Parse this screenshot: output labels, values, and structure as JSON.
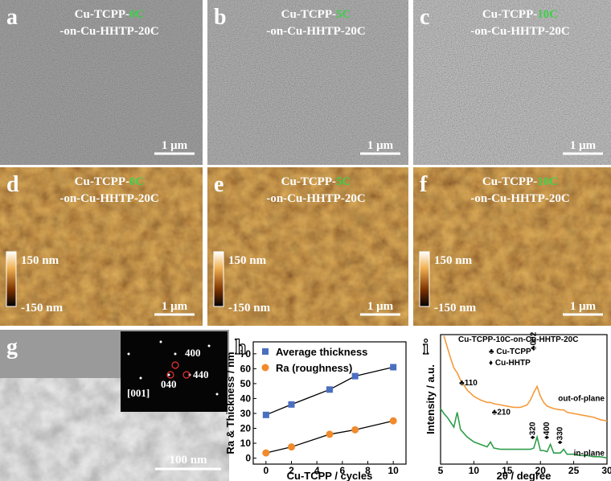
{
  "panels": [
    {
      "letter": "a",
      "title_prefix": "Cu-TCPP-",
      "cycles": "0C",
      "title_suffix": "-on-Cu-HHTP-20C",
      "scale_bar": "1 μm"
    },
    {
      "letter": "b",
      "title_prefix": "Cu-TCPP-",
      "cycles": "5C",
      "title_suffix": "-on-Cu-HHTP-20C",
      "scale_bar": "1 μm"
    },
    {
      "letter": "c",
      "title_prefix": "Cu-TCPP-",
      "cycles": "10C",
      "title_suffix": "-on-Cu-HHTP-20C",
      "scale_bar": "1 μm"
    },
    {
      "letter": "d",
      "title_prefix": "Cu-TCPP-",
      "cycles": "0C",
      "title_suffix": "-on-Cu-HHTP-20C",
      "scale_bar": "1 μm",
      "color_max": "150 nm",
      "color_min": "-150 nm"
    },
    {
      "letter": "e",
      "title_prefix": "Cu-TCPP-",
      "cycles": "5C",
      "title_suffix": "-on-Cu-HHTP-20C",
      "scale_bar": "1 μm",
      "color_max": "150 nm",
      "color_min": "-150 nm"
    },
    {
      "letter": "f",
      "title_prefix": "Cu-TCPP-",
      "cycles": "10C",
      "title_suffix": "-on-Cu-HHTP-20C",
      "scale_bar": "1 μm",
      "color_max": "150 nm",
      "color_min": "-150 nm"
    }
  ],
  "tem": {
    "letter": "g",
    "scale_bar": "100 nm",
    "inset_spots": [
      "400",
      "440",
      "040"
    ],
    "inset_zone": "[001]"
  },
  "chart_data": [
    {
      "type": "scatter",
      "panel_label": "h",
      "x_label": "Cu-TCPP / cycles",
      "y_label": "Ra & Thickness / nm",
      "x": [
        0,
        2,
        5,
        7,
        10
      ],
      "xlim": [
        -1,
        11
      ],
      "xticks": [
        0,
        2,
        4,
        6,
        8,
        10
      ],
      "ylim": [
        -4,
        78
      ],
      "yticks": [
        0,
        10,
        20,
        30,
        40,
        50,
        60,
        70
      ],
      "series": [
        {
          "name": "Average thickness",
          "color": "#4a6fc0",
          "marker": "square",
          "values": [
            29,
            36,
            46,
            55,
            61
          ]
        },
        {
          "name": "Ra (roughness)",
          "color": "#f08a2c",
          "marker": "circle",
          "values": [
            3.5,
            7.5,
            16,
            19,
            25
          ]
        }
      ]
    },
    {
      "type": "line",
      "panel_label": "i",
      "title": "Cu-TCPP-10C-on-Cu-HHTP-20C",
      "x_label": "2θ / degree",
      "y_label": "Intensity / a.u.",
      "x": [
        5,
        5.5,
        6,
        6.5,
        7,
        7.5,
        8,
        8.5,
        9,
        10,
        11,
        12,
        12.5,
        13,
        14,
        15,
        16,
        17,
        18,
        18.5,
        19,
        19.5,
        20,
        20.5,
        21,
        21.5,
        22,
        23,
        23.5,
        24,
        25,
        26,
        27,
        28,
        29,
        30
      ],
      "xlim": [
        5,
        30
      ],
      "xticks": [
        5,
        10,
        15,
        20,
        25,
        30
      ],
      "ylim": [
        0,
        105
      ],
      "series": [
        {
          "name": "out-of-plane",
          "color": "#f59a3c",
          "values": [
            null,
            104,
            95,
            86,
            78,
            74,
            68,
            64,
            60,
            55,
            52,
            50,
            50,
            49,
            48,
            47,
            46,
            46,
            48,
            52,
            58,
            63,
            55,
            50,
            47,
            46,
            45,
            44,
            44,
            42,
            41,
            40,
            39,
            38,
            36,
            35
          ]
        },
        {
          "name": "in-plane",
          "color": "#2e9e4a",
          "values": [
            45,
            41,
            38,
            34,
            30,
            42,
            28,
            25,
            22,
            18,
            16,
            14,
            18,
            13,
            12,
            12,
            12,
            12,
            12,
            12,
            13,
            22,
            11,
            11,
            10,
            16,
            9,
            9,
            12,
            8,
            8,
            7,
            7,
            6,
            6,
            5
          ]
        }
      ],
      "legend": [
        "♣ Cu-TCPP",
        "♦ Cu-HHTP"
      ],
      "annotations": [
        "♣110",
        "♣210",
        "♣002",
        "♦320",
        "♦400",
        "♦330"
      ]
    }
  ]
}
